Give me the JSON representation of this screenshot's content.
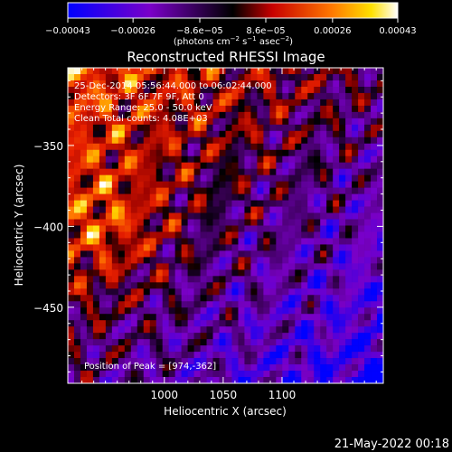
{
  "chart_data": {
    "type": "heatmap",
    "title": "Reconstructed RHESSI Image",
    "xlabel": "Heliocentric X (arcsec)",
    "ylabel": "Heliocentric Y (arcsec)",
    "xlim": [
      918,
      1186
    ],
    "ylim": [
      -497,
      -302
    ],
    "x_ticks": [
      1000,
      1050,
      1100
    ],
    "x_tick_labels": [
      "1000",
      "1050",
      "1100"
    ],
    "y_ticks": [
      -350,
      -400,
      -450
    ],
    "y_tick_labels": [
      "−350",
      "−400",
      "−450"
    ],
    "colorbar": {
      "ticks": [
        -0.00043,
        -0.00026,
        -8.6e-05,
        8.6e-05,
        0.00026,
        0.00043
      ],
      "tick_labels": [
        "−0.00043",
        "−0.00026",
        "−8.6e−05",
        "8.6e−05",
        "0.00026",
        "0.00043"
      ],
      "range": [
        -0.00043,
        0.00043
      ],
      "units_prefix": "(photons cm",
      "units_exp1": "−2",
      "units_mid1": " s",
      "units_exp2": "−1",
      "units_mid2": " asec",
      "units_exp3": "−2",
      "units_suffix": ")"
    },
    "annotations": {
      "time_range": "25-Dec-2014 05:56:44.000 to 06:02:44.000",
      "detectors": "Detectors: 3F 6F 7F 9F, Att 0",
      "energy": "Energy Range: 25.0 - 50.0 keV",
      "clean": "Clean     Total counts: 4.08E+03",
      "peak": "Position of Peak = [974,-362]"
    },
    "peak": [
      974,
      -362
    ]
  },
  "footer": {
    "timestamp": "21-May-2022 00:18"
  }
}
